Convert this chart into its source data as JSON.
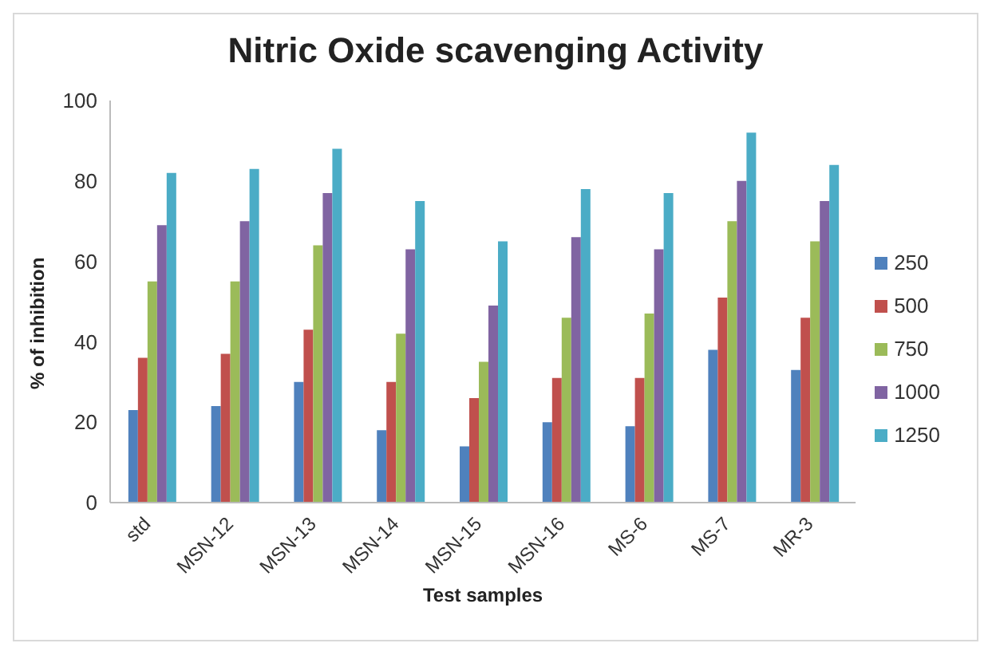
{
  "chart_data": {
    "type": "bar",
    "title": "Nitric Oxide scavenging Activity",
    "xlabel": "Test samples",
    "ylabel": "% of inhibition",
    "categories": [
      "std",
      "MSN-12",
      "MSN-13",
      "MSN-14",
      "MSN-15",
      "MSN-16",
      "MS-6",
      "MS-7",
      "MR-3"
    ],
    "series": [
      {
        "name": "250",
        "color": "#4f81bd",
        "values": [
          23,
          24,
          30,
          18,
          14,
          20,
          19,
          38,
          33
        ]
      },
      {
        "name": "500",
        "color": "#c0504d",
        "values": [
          36,
          37,
          43,
          30,
          26,
          31,
          31,
          51,
          46
        ]
      },
      {
        "name": "750",
        "color": "#9bbb59",
        "values": [
          55,
          55,
          64,
          42,
          35,
          46,
          47,
          70,
          65
        ]
      },
      {
        "name": "1000",
        "color": "#8064a2",
        "values": [
          69,
          70,
          77,
          63,
          49,
          66,
          63,
          80,
          75
        ]
      },
      {
        "name": "1250",
        "color": "#4bacc6",
        "values": [
          82,
          83,
          88,
          75,
          65,
          78,
          77,
          92,
          84
        ]
      }
    ],
    "ylim": [
      0,
      100
    ],
    "yticks": [
      0,
      20,
      40,
      60,
      80,
      100
    ],
    "grid": false,
    "legend": "right"
  }
}
